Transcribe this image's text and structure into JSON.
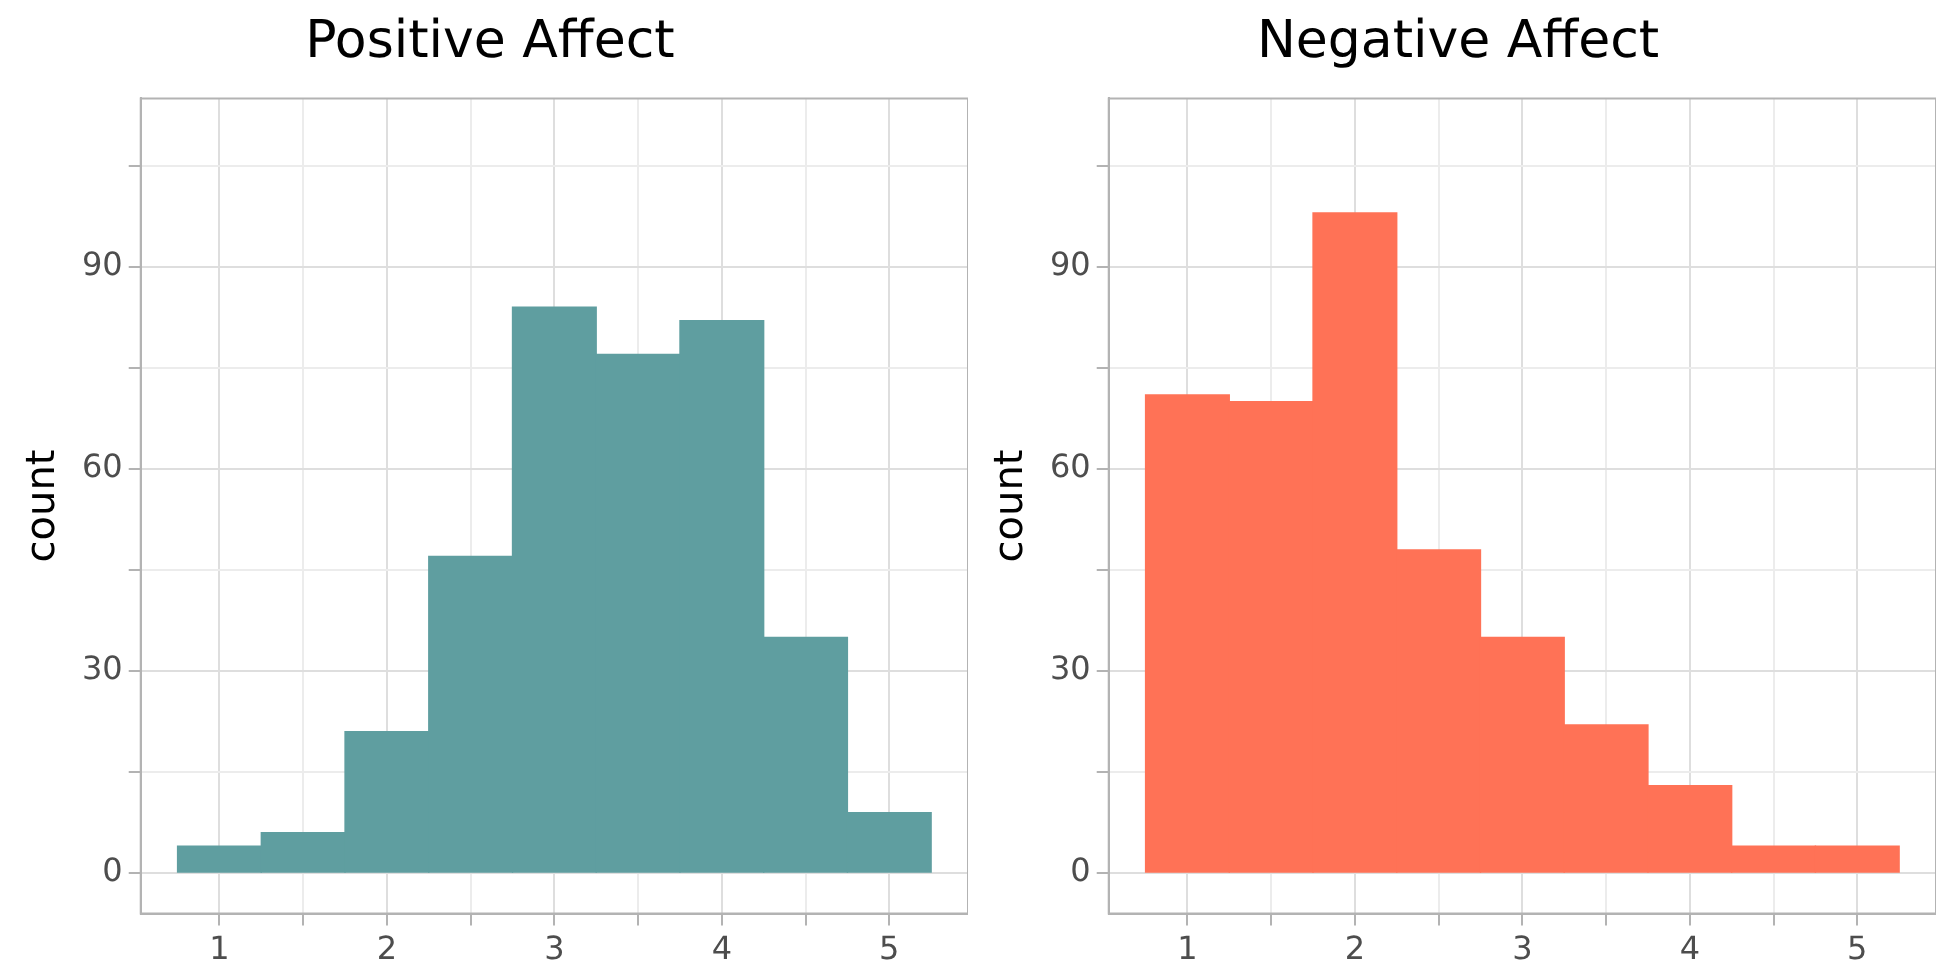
{
  "chart_data": [
    {
      "type": "histogram",
      "title": "Positive Affect",
      "ylabel": "count",
      "bins": [
        0.75,
        1.25,
        1.75,
        2.25,
        2.75,
        3.25,
        3.75,
        4.25,
        4.75,
        5.25
      ],
      "values": [
        4,
        6,
        21,
        47,
        84,
        77,
        82,
        35,
        9
      ],
      "color": "#5f9ea0",
      "xlim": [
        0.53,
        5.47
      ],
      "ylim": [
        -6,
        115
      ],
      "xticks": [
        1,
        {
          "value": 1.5,
          "label": null
        },
        2,
        {
          "value": 2.5,
          "label": null
        },
        3,
        {
          "value": 3.5,
          "label": null
        },
        4,
        {
          "value": 4.5,
          "label": null
        },
        5
      ],
      "yticks": [
        0,
        {
          "value": 15,
          "label": null
        },
        30,
        {
          "value": 45,
          "label": null
        },
        60,
        {
          "value": 75,
          "label": null
        },
        90,
        {
          "value": 105,
          "label": null
        }
      ],
      "grid": true,
      "legend": false
    },
    {
      "type": "histogram",
      "title": "Negative Affect",
      "ylabel": "count",
      "bins": [
        0.75,
        1.25,
        1.75,
        2.25,
        2.75,
        3.25,
        3.75,
        4.25,
        4.75,
        5.25
      ],
      "values": [
        71,
        70,
        98,
        48,
        35,
        22,
        13,
        4,
        4
      ],
      "color": "#ff7256",
      "xlim": [
        0.53,
        5.47
      ],
      "ylim": [
        -6,
        115
      ],
      "xticks": [
        1,
        {
          "value": 1.5,
          "label": null
        },
        2,
        {
          "value": 2.5,
          "label": null
        },
        3,
        {
          "value": 3.5,
          "label": null
        },
        4,
        {
          "value": 4.5,
          "label": null
        },
        5
      ],
      "yticks": [
        0,
        {
          "value": 15,
          "label": null
        },
        30,
        {
          "value": 45,
          "label": null
        },
        60,
        {
          "value": 75,
          "label": null
        },
        90,
        {
          "value": 105,
          "label": null
        }
      ],
      "grid": true,
      "legend": false
    }
  ]
}
